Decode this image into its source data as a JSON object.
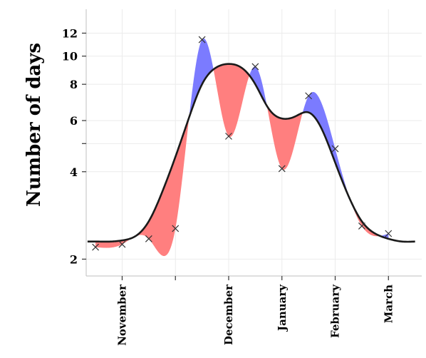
{
  "chart_data": {
    "type": "line",
    "title": "",
    "xlabel": "",
    "ylabel": "Number of days",
    "y_scale": "log",
    "ylim": [
      1.75,
      14.5
    ],
    "y_ticks": [
      2,
      4,
      6,
      8,
      10,
      12
    ],
    "y_unlabeled_ticks": [
      5
    ],
    "x_range": [
      -0.35,
      12.25
    ],
    "x_tick_positions": [
      1,
      3,
      5,
      7,
      9,
      11
    ],
    "x_tick_labels": [
      "November",
      "",
      "December",
      "January",
      "February",
      "March"
    ],
    "grid": true,
    "observed": {
      "marker": "x",
      "x": [
        0,
        1,
        2,
        3,
        4,
        5,
        6,
        7,
        8,
        9,
        10,
        11
      ],
      "y": [
        2.2,
        2.25,
        2.35,
        2.55,
        11.4,
        5.3,
        9.2,
        4.1,
        7.3,
        4.8,
        2.6,
        2.45
      ]
    },
    "fitted": {
      "x": [
        -0.3,
        0,
        0.6,
        1,
        1.5,
        2,
        2.5,
        3,
        3.5,
        4,
        4.5,
        5,
        5.5,
        6,
        6.5,
        7,
        7.5,
        8,
        8.5,
        9,
        9.5,
        10,
        10.5,
        11,
        11.5,
        12
      ],
      "y": [
        2.3,
        2.3,
        2.3,
        2.32,
        2.4,
        2.7,
        3.4,
        4.5,
        6.1,
        8.0,
        9.1,
        9.4,
        9.1,
        8.0,
        6.6,
        6.1,
        6.2,
        6.4,
        5.6,
        4.3,
        3.3,
        2.7,
        2.45,
        2.35,
        2.3,
        2.3
      ]
    },
    "shading": {
      "above_fit_color": "#7b7bff",
      "below_fit_color": "#ff7f7f"
    },
    "colors": {
      "fit_line": "#1a1a1a",
      "marker": "#333333",
      "grid": "#ebebeb",
      "axis": "#bfbfbf"
    }
  }
}
